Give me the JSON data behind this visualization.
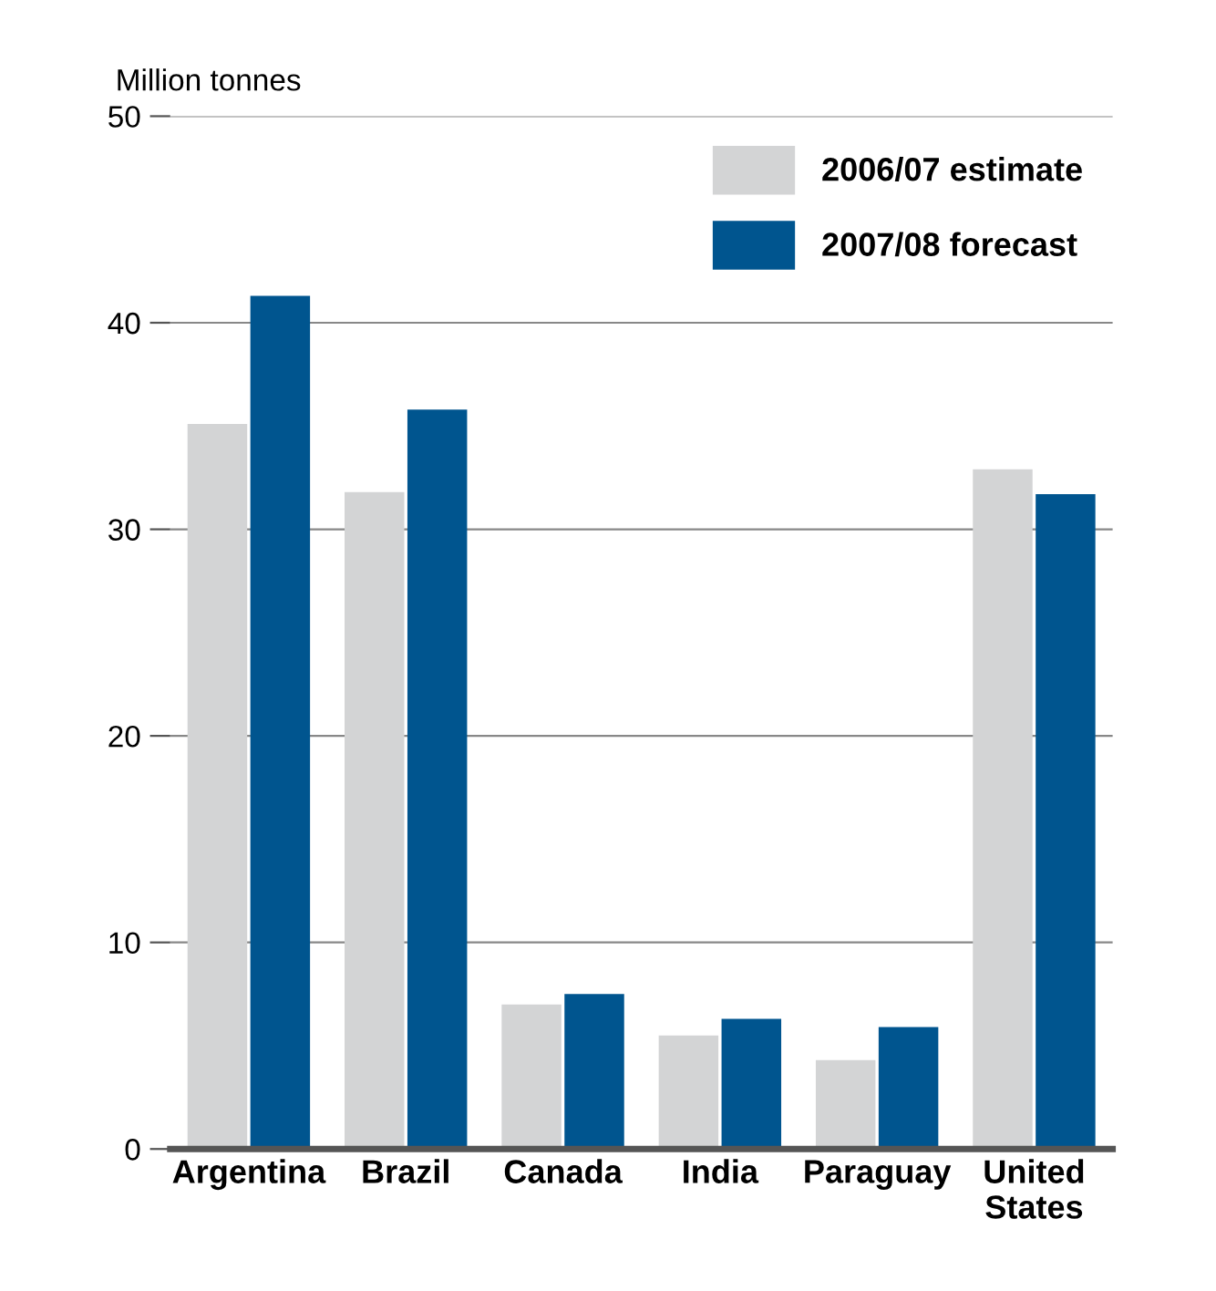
{
  "chart_data": {
    "type": "bar",
    "ylabel": "Million tonnes",
    "categories": [
      "Argentina",
      "Brazil",
      "Canada",
      "India",
      "Paraguay",
      "United\nStates"
    ],
    "series": [
      {
        "name": "2006/07 estimate",
        "color": "#d3d4d5",
        "values": [
          35.1,
          31.8,
          7.0,
          5.5,
          4.3,
          32.9
        ]
      },
      {
        "name": "2007/08 forecast",
        "color": "#00558f",
        "values": [
          41.3,
          35.8,
          7.5,
          6.3,
          5.9,
          31.7
        ]
      }
    ],
    "ylim": [
      0,
      50
    ],
    "yticks": [
      0,
      10,
      20,
      30,
      40,
      50
    ],
    "grid": "y",
    "legend": "top right"
  }
}
